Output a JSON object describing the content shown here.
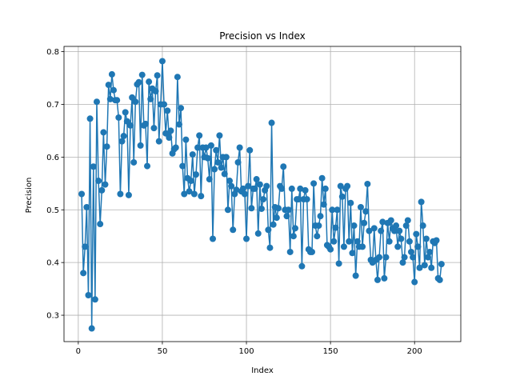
{
  "chart_data": {
    "type": "line",
    "title": "Precision vs Index",
    "xlabel": "Index",
    "ylabel": "Precision",
    "xlim": [
      -8.5,
      227.5
    ],
    "ylim": [
      0.25,
      0.81
    ],
    "xticks": [
      0,
      50,
      100,
      150,
      200
    ],
    "yticks": [
      0.3,
      0.4,
      0.5,
      0.6,
      0.7,
      0.8
    ],
    "xtick_labels": [
      "0",
      "50",
      "100",
      "150",
      "200"
    ],
    "ytick_labels": [
      "0.3",
      "0.4",
      "0.5",
      "0.6",
      "0.7",
      "0.8"
    ],
    "grid": true,
    "legend": "none",
    "marker": "circle",
    "color": "#1f77b4",
    "series": [
      {
        "x": [
          2,
          3,
          4,
          5,
          6,
          7,
          8,
          9,
          10,
          11,
          12,
          13,
          14,
          15,
          16,
          17,
          18,
          19,
          20,
          21,
          22,
          23,
          24,
          25,
          26,
          27,
          28,
          29,
          30,
          31,
          32,
          33,
          34,
          35,
          36,
          37,
          38,
          39,
          40,
          41,
          42,
          43,
          44,
          45,
          46,
          47,
          48,
          49,
          50,
          51,
          52,
          53,
          54,
          55,
          56,
          57,
          58,
          59,
          60,
          61,
          62,
          63,
          64,
          65,
          66,
          67,
          68,
          69,
          70,
          71,
          72,
          73,
          74,
          75,
          76,
          77,
          78,
          79,
          80,
          81,
          82,
          83,
          84,
          85,
          86,
          87,
          88,
          89,
          90,
          91,
          92,
          93,
          94,
          95,
          96,
          97,
          98,
          99,
          100,
          101,
          102,
          103,
          104,
          105,
          106,
          107,
          108,
          109,
          110,
          111,
          112,
          113,
          114,
          115,
          116,
          117,
          118,
          119,
          120,
          121,
          122,
          123,
          124,
          125,
          126,
          127,
          128,
          129,
          130,
          131,
          132,
          133,
          134,
          135,
          136,
          137,
          138,
          139,
          140,
          141,
          142,
          143,
          144,
          145,
          146,
          147,
          148,
          149,
          150,
          151,
          152,
          153,
          154,
          155,
          156,
          157,
          158,
          159,
          160,
          161,
          162,
          163,
          164,
          165,
          166,
          167,
          168,
          169,
          170,
          171,
          172,
          173,
          174,
          175,
          176,
          177,
          178,
          179,
          180,
          181,
          182,
          183,
          184,
          185,
          186,
          187,
          188,
          189,
          190,
          191,
          192,
          193,
          194,
          195,
          196,
          197,
          198,
          199,
          200,
          201,
          202,
          203,
          204,
          205,
          206,
          207,
          208,
          209,
          210,
          211,
          212,
          213,
          214,
          215,
          216
        ],
        "y": [
          0.53,
          0.38,
          0.43,
          0.505,
          0.338,
          0.673,
          0.275,
          0.582,
          0.33,
          0.705,
          0.555,
          0.473,
          0.537,
          0.647,
          0.548,
          0.62,
          0.737,
          0.71,
          0.757,
          0.727,
          0.708,
          0.708,
          0.675,
          0.53,
          0.63,
          0.64,
          0.685,
          0.668,
          0.528,
          0.66,
          0.713,
          0.59,
          0.705,
          0.738,
          0.742,
          0.622,
          0.756,
          0.66,
          0.663,
          0.583,
          0.743,
          0.71,
          0.73,
          0.655,
          0.725,
          0.755,
          0.63,
          0.7,
          0.782,
          0.7,
          0.645,
          0.688,
          0.637,
          0.65,
          0.607,
          0.615,
          0.618,
          0.752,
          0.662,
          0.693,
          0.583,
          0.53,
          0.633,
          0.56,
          0.535,
          0.555,
          0.605,
          0.53,
          0.567,
          0.618,
          0.641,
          0.526,
          0.618,
          0.6,
          0.618,
          0.598,
          0.558,
          0.622,
          0.445,
          0.577,
          0.613,
          0.59,
          0.641,
          0.58,
          0.6,
          0.568,
          0.6,
          0.5,
          0.555,
          0.545,
          0.462,
          0.53,
          0.538,
          0.59,
          0.618,
          0.535,
          0.54,
          0.53,
          0.445,
          0.545,
          0.613,
          0.503,
          0.54,
          0.54,
          0.558,
          0.455,
          0.548,
          0.502,
          0.52,
          0.537,
          0.545,
          0.462,
          0.428,
          0.665,
          0.472,
          0.505,
          0.485,
          0.503,
          0.545,
          0.54,
          0.582,
          0.5,
          0.488,
          0.5,
          0.42,
          0.54,
          0.45,
          0.465,
          0.52,
          0.52,
          0.54,
          0.393,
          0.52,
          0.537,
          0.52,
          0.425,
          0.42,
          0.42,
          0.55,
          0.47,
          0.45,
          0.47,
          0.488,
          0.56,
          0.51,
          0.54,
          0.433,
          0.43,
          0.425,
          0.5,
          0.44,
          0.466,
          0.5,
          0.398,
          0.545,
          0.525,
          0.43,
          0.54,
          0.545,
          0.44,
          0.513,
          0.418,
          0.47,
          0.375,
          0.44,
          0.43,
          0.505,
          0.43,
          0.475,
          0.497,
          0.549,
          0.46,
          0.405,
          0.4,
          0.465,
          0.405,
          0.367,
          0.41,
          0.46,
          0.477,
          0.37,
          0.41,
          0.475,
          0.44,
          0.48,
          0.465,
          0.46,
          0.47,
          0.43,
          0.46,
          0.445,
          0.4,
          0.41,
          0.47,
          0.48,
          0.44,
          0.42,
          0.41,
          0.363,
          0.454,
          0.43,
          0.39,
          0.515,
          0.47,
          0.395,
          0.445,
          0.41,
          0.42,
          0.39,
          0.44,
          0.437,
          0.442,
          0.37,
          0.367,
          0.397
        ]
      }
    ]
  }
}
